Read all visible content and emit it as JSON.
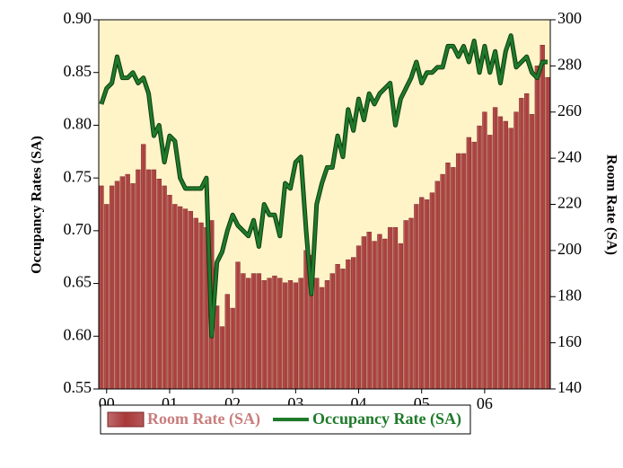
{
  "chart_data": {
    "type": "combo",
    "y_label": "Occupancy Rates (SA)",
    "y2_label": "Room Rate (SA)",
    "categories": [
      null,
      "00",
      null,
      null,
      null,
      null,
      null,
      null,
      null,
      null,
      null,
      null,
      null,
      "01",
      null,
      null,
      null,
      null,
      null,
      null,
      null,
      null,
      null,
      null,
      null,
      "02",
      null,
      null,
      null,
      null,
      null,
      null,
      null,
      null,
      null,
      null,
      null,
      "03",
      null,
      null,
      null,
      null,
      null,
      null,
      null,
      null,
      null,
      null,
      null,
      "04",
      null,
      null,
      null,
      null,
      null,
      null,
      null,
      null,
      null,
      null,
      null,
      "05",
      null,
      null,
      null,
      null,
      null,
      null,
      null,
      null,
      null,
      null,
      null,
      "06",
      null,
      null,
      null,
      null,
      null,
      null,
      null,
      null,
      null,
      null,
      null,
      null
    ],
    "series": [
      {
        "name": "Room Rate (SA)",
        "type": "bar",
        "axis": "y2",
        "color": "#a8393a",
        "legend_color": "#c97d7d",
        "values": [
          228,
          220,
          228,
          230,
          232,
          233,
          229,
          235,
          246,
          235,
          235,
          231,
          228,
          224,
          220,
          219,
          218,
          217,
          214,
          212,
          210,
          213,
          176,
          167,
          181,
          175,
          195,
          190,
          188,
          190,
          190,
          187,
          188,
          189,
          188,
          186,
          187,
          186,
          188,
          200,
          198,
          188,
          184,
          187,
          190,
          194,
          192,
          196,
          197,
          202,
          206,
          208,
          204,
          207,
          205,
          210,
          210,
          203,
          213,
          214,
          220,
          223,
          222,
          225,
          230,
          233,
          238,
          236,
          242,
          242,
          249,
          247,
          254,
          260,
          250,
          262,
          258,
          256,
          253,
          260,
          266,
          268,
          259,
          280,
          289,
          275
        ]
      },
      {
        "name": "Occupancy Rate (SA)",
        "type": "line",
        "axis": "y",
        "color": "#1f7a2a",
        "legend_color": "#1f7a2a",
        "values": [
          0.82,
          0.835,
          0.84,
          0.865,
          0.845,
          0.845,
          0.85,
          0.84,
          0.845,
          0.83,
          0.79,
          0.8,
          0.765,
          0.79,
          0.785,
          0.75,
          0.74,
          0.74,
          0.74,
          0.74,
          0.75,
          0.6,
          0.67,
          0.68,
          0.7,
          0.715,
          0.705,
          0.7,
          0.695,
          0.71,
          0.685,
          0.725,
          0.715,
          0.715,
          0.695,
          0.745,
          0.74,
          0.765,
          0.77,
          0.7,
          0.64,
          0.725,
          0.745,
          0.76,
          0.76,
          0.79,
          0.77,
          0.815,
          0.795,
          0.825,
          0.805,
          0.83,
          0.82,
          0.83,
          0.835,
          0.84,
          0.8,
          0.825,
          0.835,
          0.845,
          0.86,
          0.84,
          0.85,
          0.85,
          0.855,
          0.855,
          0.875,
          0.875,
          0.865,
          0.875,
          0.86,
          0.88,
          0.85,
          0.875,
          0.85,
          0.87,
          0.84,
          0.87,
          0.885,
          0.855,
          0.86,
          0.865,
          0.85,
          0.845,
          0.86,
          0.86
        ]
      }
    ],
    "ylim": [
      0.55,
      0.9
    ],
    "yticks": [
      0.55,
      {
        "value": 0.6,
        "label": "0.60"
      },
      0.65,
      {
        "value": 0.7,
        "label": "0.70"
      },
      0.75,
      {
        "value": 0.8,
        "label": "0.80"
      },
      0.85,
      {
        "value": 0.9,
        "label": "0.90"
      }
    ],
    "y2lim": [
      140,
      300
    ],
    "y2ticks": [
      140,
      160,
      180,
      200,
      220,
      240,
      260,
      280,
      300
    ],
    "plot_background": "#fff3c8",
    "legend": "bottom"
  }
}
